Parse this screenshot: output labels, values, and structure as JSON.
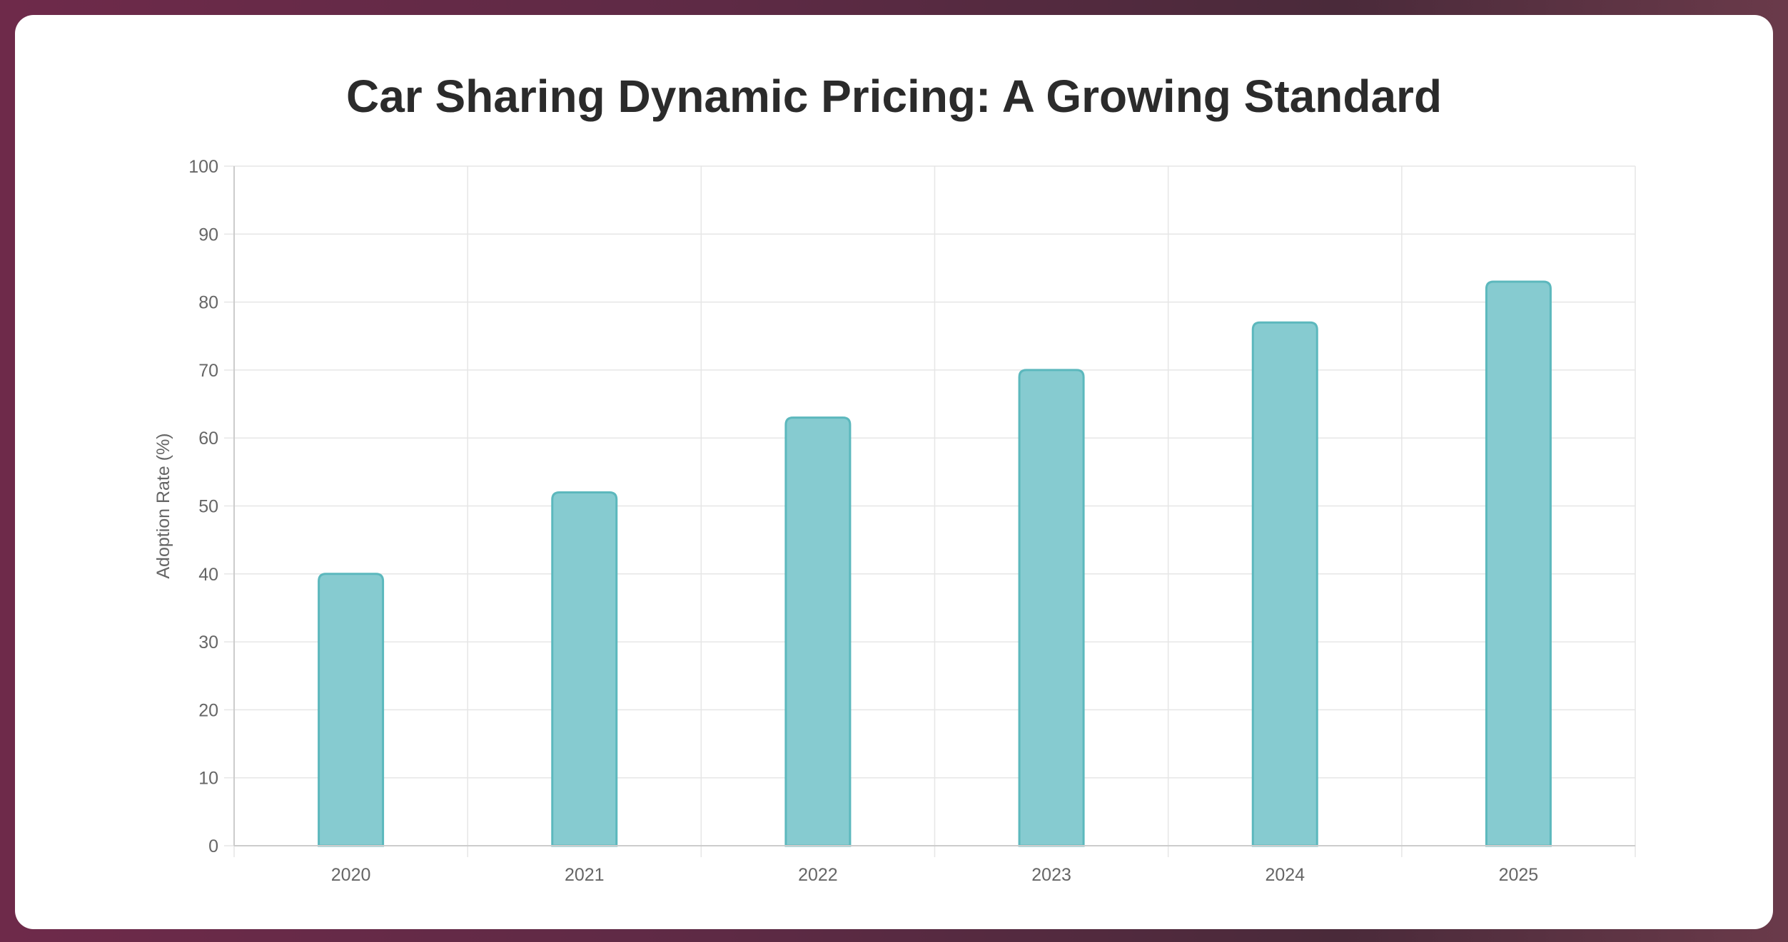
{
  "chart_data": {
    "type": "bar",
    "title": "Car Sharing Dynamic Pricing: A Growing Standard",
    "xlabel": "",
    "ylabel": "Adoption Rate (%)",
    "categories": [
      "2020",
      "2021",
      "2022",
      "2023",
      "2024",
      "2025"
    ],
    "values": [
      40,
      52,
      63,
      70,
      77,
      83
    ],
    "ylim": [
      0,
      100
    ],
    "yticks": [
      "0",
      "10",
      "20",
      "30",
      "40",
      "50",
      "60",
      "70",
      "80",
      "90",
      "100"
    ],
    "grid": true,
    "legend": "none",
    "colors": {
      "bar_fill": "#86cbd0",
      "bar_stroke": "#5cb8bd",
      "grid": "#e6e6e6",
      "axis": "#cccccc"
    }
  }
}
